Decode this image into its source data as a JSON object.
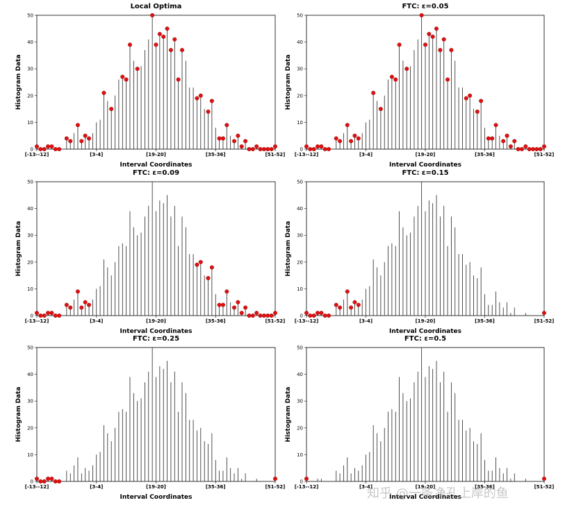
{
  "chart_data": [
    {
      "type": "bar",
      "title": "Local Optima",
      "xlabel": "Interval Coordinates",
      "ylabel": "Histogram Data",
      "ylim": [
        0,
        50
      ],
      "yticks": [
        0,
        10,
        20,
        30,
        40,
        50
      ],
      "xticks": [
        {
          "label": "[-13--12]",
          "index": 0
        },
        {
          "label": "[3-4]",
          "index": 16
        },
        {
          "label": "[19-20]",
          "index": 32
        },
        {
          "label": "[35-36]",
          "index": 48
        },
        {
          "label": "[51-52]",
          "index": 64
        }
      ],
      "values": [
        1,
        0,
        0,
        1,
        1,
        0,
        0,
        0,
        4,
        3,
        6,
        9,
        3,
        5,
        4,
        6,
        10,
        11,
        21,
        18,
        15,
        20,
        26,
        27,
        26,
        39,
        33,
        30,
        31,
        37,
        41,
        50,
        39,
        43,
        42,
        45,
        37,
        41,
        26,
        37,
        33,
        23,
        23,
        19,
        20,
        15,
        14,
        18,
        8,
        4,
        4,
        9,
        5,
        3,
        5,
        1,
        3,
        0,
        0,
        1,
        0,
        0,
        0,
        0,
        1
      ],
      "marked": [
        0,
        1,
        2,
        3,
        4,
        5,
        6,
        8,
        9,
        11,
        12,
        13,
        14,
        18,
        20,
        23,
        24,
        25,
        27,
        31,
        32,
        33,
        34,
        35,
        36,
        37,
        38,
        39,
        43,
        44,
        46,
        47,
        49,
        50,
        51,
        53,
        54,
        55,
        56,
        57,
        58,
        59,
        60,
        61,
        62,
        63,
        64
      ],
      "marker_color": "#dd1111"
    },
    {
      "type": "bar",
      "title": "FTC: ε=0.05",
      "xlabel": "Interval Coordinates",
      "ylabel": "Histogram Data",
      "ylim": [
        0,
        50
      ],
      "yticks": [
        0,
        10,
        20,
        30,
        40,
        50
      ],
      "xticks": [
        {
          "label": "[-13--12]",
          "index": 0
        },
        {
          "label": "[3-4]",
          "index": 16
        },
        {
          "label": "[19-20]",
          "index": 32
        },
        {
          "label": "[35-36]",
          "index": 48
        },
        {
          "label": "[51-52]",
          "index": 64
        }
      ],
      "values": [
        1,
        0,
        0,
        1,
        1,
        0,
        0,
        0,
        4,
        3,
        6,
        9,
        3,
        5,
        4,
        6,
        10,
        11,
        21,
        18,
        15,
        20,
        26,
        27,
        26,
        39,
        33,
        30,
        31,
        37,
        41,
        50,
        39,
        43,
        42,
        45,
        37,
        41,
        26,
        37,
        33,
        23,
        23,
        19,
        20,
        15,
        14,
        18,
        8,
        4,
        4,
        9,
        5,
        3,
        5,
        1,
        3,
        0,
        0,
        1,
        0,
        0,
        0,
        0,
        1
      ],
      "marked": [
        0,
        1,
        2,
        3,
        4,
        5,
        6,
        8,
        9,
        11,
        12,
        13,
        14,
        18,
        20,
        23,
        24,
        25,
        27,
        31,
        32,
        33,
        34,
        35,
        36,
        37,
        38,
        39,
        43,
        44,
        46,
        47,
        49,
        50,
        51,
        53,
        54,
        55,
        56,
        57,
        58,
        59,
        60,
        61,
        62,
        63,
        64
      ],
      "marker_color": "#dd1111"
    },
    {
      "type": "bar",
      "title": "FTC: ε=0.09",
      "xlabel": "Interval Coordinates",
      "ylabel": "Histogram Data",
      "ylim": [
        0,
        50
      ],
      "yticks": [
        0,
        10,
        20,
        30,
        40,
        50
      ],
      "xticks": [
        {
          "label": "[-13--12]",
          "index": 0
        },
        {
          "label": "[3-4]",
          "index": 16
        },
        {
          "label": "[19-20]",
          "index": 32
        },
        {
          "label": "[35-36]",
          "index": 48
        },
        {
          "label": "[51-52]",
          "index": 64
        }
      ],
      "values": [
        1,
        0,
        0,
        1,
        1,
        0,
        0,
        0,
        4,
        3,
        6,
        9,
        3,
        5,
        4,
        6,
        10,
        11,
        21,
        18,
        15,
        20,
        26,
        27,
        26,
        39,
        33,
        30,
        31,
        37,
        41,
        50,
        39,
        43,
        42,
        45,
        37,
        41,
        26,
        37,
        33,
        23,
        23,
        19,
        20,
        15,
        14,
        18,
        8,
        4,
        4,
        9,
        5,
        3,
        5,
        1,
        3,
        0,
        0,
        1,
        0,
        0,
        0,
        0,
        1
      ],
      "marked": [
        0,
        1,
        2,
        3,
        4,
        5,
        6,
        8,
        9,
        11,
        12,
        13,
        14,
        43,
        44,
        46,
        47,
        49,
        50,
        51,
        53,
        54,
        55,
        56,
        57,
        58,
        59,
        60,
        61,
        62,
        63,
        64
      ],
      "marker_color": "#dd1111"
    },
    {
      "type": "bar",
      "title": "FTC: ε=0.15",
      "xlabel": "Interval Coordinates",
      "ylabel": "Histogram Data",
      "ylim": [
        0,
        50
      ],
      "yticks": [
        0,
        10,
        20,
        30,
        40,
        50
      ],
      "xticks": [
        {
          "label": "[-13--12]",
          "index": 0
        },
        {
          "label": "[3-4]",
          "index": 16
        },
        {
          "label": "[19-20]",
          "index": 32
        },
        {
          "label": "[35-36]",
          "index": 48
        },
        {
          "label": "[51-52]",
          "index": 64
        }
      ],
      "values": [
        1,
        0,
        0,
        1,
        1,
        0,
        0,
        0,
        4,
        3,
        6,
        9,
        3,
        5,
        4,
        6,
        10,
        11,
        21,
        18,
        15,
        20,
        26,
        27,
        26,
        39,
        33,
        30,
        31,
        37,
        41,
        50,
        39,
        43,
        42,
        45,
        37,
        41,
        26,
        37,
        33,
        23,
        23,
        19,
        20,
        15,
        14,
        18,
        8,
        4,
        4,
        9,
        5,
        3,
        5,
        1,
        3,
        0,
        0,
        1,
        0,
        0,
        0,
        0,
        1
      ],
      "marked": [
        0,
        1,
        2,
        3,
        4,
        5,
        6,
        8,
        9,
        11,
        12,
        13,
        14,
        64
      ],
      "marker_color": "#dd1111"
    },
    {
      "type": "bar",
      "title": "FTC: ε=0.25",
      "xlabel": "Interval Coordinates",
      "ylabel": "Histogram Data",
      "ylim": [
        0,
        50
      ],
      "yticks": [
        0,
        10,
        20,
        30,
        40,
        50
      ],
      "xticks": [
        {
          "label": "[-13--12]",
          "index": 0
        },
        {
          "label": "[3-4]",
          "index": 16
        },
        {
          "label": "[19-20]",
          "index": 32
        },
        {
          "label": "[35-36]",
          "index": 48
        },
        {
          "label": "[51-52]",
          "index": 64
        }
      ],
      "values": [
        1,
        0,
        0,
        1,
        1,
        0,
        0,
        0,
        4,
        3,
        6,
        9,
        3,
        5,
        4,
        6,
        10,
        11,
        21,
        18,
        15,
        20,
        26,
        27,
        26,
        39,
        33,
        30,
        31,
        37,
        41,
        50,
        39,
        43,
        42,
        45,
        37,
        41,
        26,
        37,
        33,
        23,
        23,
        19,
        20,
        15,
        14,
        18,
        8,
        4,
        4,
        9,
        5,
        3,
        5,
        1,
        3,
        0,
        0,
        1,
        0,
        0,
        0,
        0,
        1
      ],
      "marked": [
        0,
        1,
        2,
        3,
        4,
        5,
        6,
        64
      ],
      "marker_color": "#dd1111"
    },
    {
      "type": "bar",
      "title": "FTC: ε=0.5",
      "xlabel": "Interval Coordinates",
      "ylabel": "Histogram Data",
      "ylim": [
        0,
        50
      ],
      "yticks": [
        0,
        10,
        20,
        30,
        40,
        50
      ],
      "xticks": [
        {
          "label": "[-13--12]",
          "index": 0
        },
        {
          "label": "[3-4]",
          "index": 16
        },
        {
          "label": "[19-20]",
          "index": 32
        },
        {
          "label": "[35-36]",
          "index": 48
        },
        {
          "label": "[51-52]",
          "index": 64
        }
      ],
      "values": [
        1,
        0,
        0,
        1,
        1,
        0,
        0,
        0,
        4,
        3,
        6,
        9,
        3,
        5,
        4,
        6,
        10,
        11,
        21,
        18,
        15,
        20,
        26,
        27,
        26,
        39,
        33,
        30,
        31,
        37,
        41,
        50,
        39,
        43,
        42,
        45,
        37,
        41,
        26,
        37,
        33,
        23,
        23,
        19,
        20,
        15,
        14,
        18,
        8,
        4,
        4,
        9,
        5,
        3,
        5,
        1,
        3,
        0,
        0,
        1,
        0,
        0,
        0,
        0,
        1
      ],
      "marked": [
        0,
        64
      ],
      "marker_color": "#dd1111"
    }
  ],
  "watermark": "知乎 @一条净孔上岸的鱼"
}
